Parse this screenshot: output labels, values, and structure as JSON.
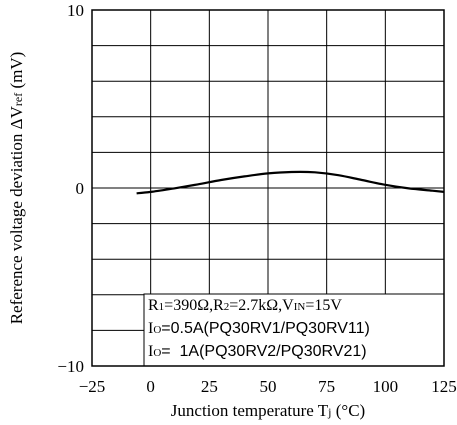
{
  "chart_data": {
    "type": "line",
    "xlabel": "Junction temperature T",
    "xlabel_sub": "j",
    "xlabel_unit": " (°C)",
    "ylabel": "Reference voltage deviation ΔV",
    "ylabel_sub": "ref",
    "ylabel_unit": " (mV)",
    "xlim": [
      -25,
      125
    ],
    "ylim": [
      -10,
      10
    ],
    "x_ticks": [
      -25,
      0,
      25,
      50,
      75,
      100,
      125
    ],
    "x_tick_labels": [
      "−25",
      "0",
      "25",
      "50",
      "75",
      "100",
      "125"
    ],
    "y_tick_labels": [
      {
        "value": 10,
        "label": "10"
      },
      {
        "value": 0,
        "label": "0"
      },
      {
        "value": -10,
        "label": "−10"
      }
    ],
    "y_gridlines": [
      -10,
      -8,
      -6,
      -4,
      -2,
      0,
      2,
      4,
      6,
      8,
      10
    ],
    "x_gridlines": [
      -25,
      0,
      25,
      50,
      75,
      100,
      125
    ],
    "grid": true,
    "series": [
      {
        "x": [
          -6,
          0,
          10,
          20,
          30,
          40,
          50,
          60,
          70,
          80,
          90,
          100,
          110,
          120,
          125
        ],
        "y": [
          -0.3,
          -0.22,
          -0.02,
          0.2,
          0.45,
          0.65,
          0.82,
          0.9,
          0.88,
          0.72,
          0.45,
          0.18,
          -0.02,
          -0.15,
          -0.22
        ],
        "color": "#000000"
      }
    ],
    "annotation": {
      "lines": [
        {
          "parts": [
            {
              "t": "R",
              "f": "serif"
            },
            {
              "t": "1",
              "f": "serif",
              "sub": true
            },
            {
              "t": "=390Ω,R",
              "f": "serif"
            },
            {
              "t": "2",
              "f": "serif",
              "sub": true
            },
            {
              "t": "=2.7kΩ,V",
              "f": "serif"
            },
            {
              "t": "IN",
              "f": "serif",
              "sub": true
            },
            {
              "t": "=15V",
              "f": "serif"
            }
          ]
        },
        {
          "parts": [
            {
              "t": "I",
              "f": "serif"
            },
            {
              "t": "O",
              "f": "serif",
              "sub": true
            },
            {
              "t": "=0.5A(PQ30RV1/PQ30RV11)",
              "f": "sans"
            }
          ]
        },
        {
          "parts": [
            {
              "t": "I",
              "f": "serif"
            },
            {
              "t": "O",
              "f": "serif",
              "sub": true
            },
            {
              "t": "=  1A(PQ30RV2/PQ30RV21)",
              "f": "sans"
            }
          ]
        }
      ]
    }
  }
}
